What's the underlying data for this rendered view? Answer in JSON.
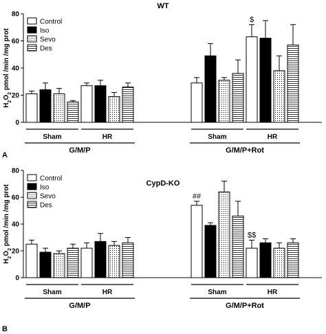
{
  "chart_data": [
    {
      "type": "bar",
      "panel_letter": "A",
      "title": "WT",
      "ylabel": "H2O2 pmol /min /mg prot",
      "ylim": [
        0,
        80
      ],
      "yticks": [
        0,
        20,
        40,
        60,
        80
      ],
      "series_names": [
        "Control",
        "Iso",
        "Sevo",
        "Des"
      ],
      "groups": [
        {
          "label": "Sham",
          "values": [
            21,
            24,
            21,
            15
          ],
          "errors": [
            2,
            5,
            4,
            1
          ]
        },
        {
          "label": "HR",
          "values": [
            27,
            27,
            19,
            26
          ],
          "errors": [
            2,
            4,
            3,
            3
          ]
        },
        {
          "label": "Sham",
          "values": [
            29,
            49,
            31,
            36
          ],
          "errors": [
            4,
            9,
            2,
            10
          ]
        },
        {
          "label": "HR",
          "values": [
            63,
            62,
            38,
            57
          ],
          "errors": [
            9,
            13,
            11,
            15
          ]
        }
      ],
      "bracket_labels": [
        "G/M/P",
        "G/M/P+Rot"
      ],
      "annotations": [
        {
          "group": 3,
          "series": 0,
          "text": "$"
        }
      ],
      "legend_position": "top-left",
      "grid": false
    },
    {
      "type": "bar",
      "panel_letter": "B",
      "title": "CypD-KO",
      "ylabel": "H2O2 pmol /min /mg prot",
      "ylim": [
        0,
        80
      ],
      "yticks": [
        0,
        20,
        40,
        60,
        80
      ],
      "series_names": [
        "Control",
        "Iso",
        "Sevo",
        "Des"
      ],
      "groups": [
        {
          "label": "Sham",
          "values": [
            25,
            19,
            18,
            22
          ],
          "errors": [
            3,
            3,
            2,
            3
          ]
        },
        {
          "label": "HR",
          "values": [
            22,
            27,
            24,
            26
          ],
          "errors": [
            4,
            6,
            3,
            4
          ]
        },
        {
          "label": "Sham",
          "values": [
            54,
            39,
            64,
            46
          ],
          "errors": [
            3,
            2,
            8,
            11
          ]
        },
        {
          "label": "HR",
          "values": [
            22,
            26,
            22,
            26
          ],
          "errors": [
            6,
            3,
            4,
            3
          ]
        }
      ],
      "bracket_labels": [
        "G/M/P",
        "G/M/P+Rot"
      ],
      "annotations": [
        {
          "group": 2,
          "series": 0,
          "text": "##"
        },
        {
          "group": 3,
          "series": 0,
          "text": "$$"
        }
      ],
      "legend_position": "top-left",
      "grid": false
    }
  ]
}
